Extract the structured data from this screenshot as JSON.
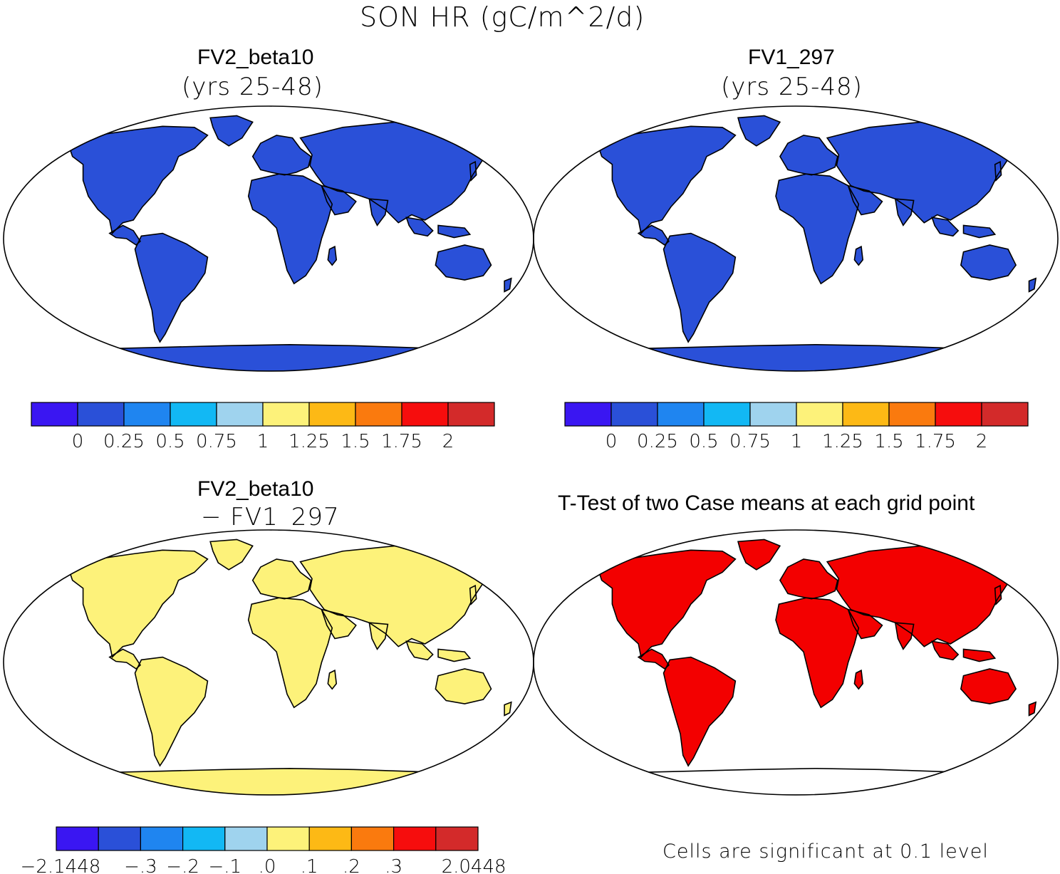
{
  "figure": {
    "title": "SON HR (gC/m^2/d)",
    "significance_note": "Cells are significant at 0.1 level"
  },
  "panels": [
    {
      "id": "top-left",
      "title": "FV2_beta10",
      "subtitle": "(yrs 25-48)"
    },
    {
      "id": "top-right",
      "title": "FV1_297",
      "subtitle": "(yrs 25-48)"
    },
    {
      "id": "bottom-left",
      "title": "FV2_beta10",
      "subtitle": "− FV1_297"
    },
    {
      "id": "bottom-right",
      "title": "T-Test of two Case means at each grid point",
      "subtitle": ""
    }
  ],
  "colorbars": {
    "absolute": {
      "colors": [
        "#3a16f2",
        "#2a50d8",
        "#1f85f0",
        "#12b8f4",
        "#9fd3ee",
        "#fdf27a",
        "#fdb915",
        "#fa7a0e",
        "#f60d0d",
        "#d32a2a"
      ],
      "labels": [
        "0",
        "0.25",
        "0.5",
        "0.75",
        "1",
        "1.25",
        "1.5",
        "1.75",
        "2"
      ]
    },
    "difference": {
      "colors": [
        "#3a16f2",
        "#2a50d8",
        "#1f85f0",
        "#12b8f4",
        "#9fd3ee",
        "#fdf27a",
        "#fdb915",
        "#fa7a0e",
        "#f60d0d",
        "#d32a2a"
      ],
      "labels": [
        "−2.1448",
        "−.3",
        "−.2",
        "−.1",
        ".0",
        ".1",
        ".2",
        ".3",
        "2.0448"
      ]
    }
  },
  "ttest": {
    "significant_color": "#f30000"
  }
}
